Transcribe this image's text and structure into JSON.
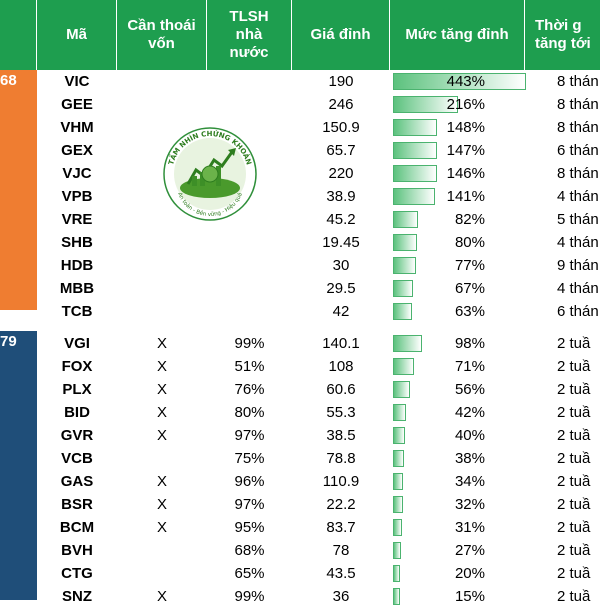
{
  "headers": {
    "ma": "Mã",
    "thoai_von": [
      "Cần thoái",
      "vốn"
    ],
    "tlsh": [
      "TLSH",
      "nhà",
      "nước"
    ],
    "gia_dinh": "Giá đỉnh",
    "muc_tang": "Mức tăng đỉnh",
    "thoi_gian": [
      "Thời g",
      "tăng tới"
    ]
  },
  "groups": {
    "top": {
      "label": "68",
      "color": "#ef7d31"
    },
    "bottom": {
      "label": "79",
      "color": "#1f4e79"
    }
  },
  "logo": {
    "text_top": "TẦM NHÌN CHỨNG KHOÁN",
    "text_bottom": "An toàn - Bền vững - Hiệu quả",
    "icon": "stock-growth-globe-icon"
  },
  "rows_top": [
    {
      "ma": "VIC",
      "thoai_von": "",
      "tlsh": "",
      "gia": "190",
      "pct": "443%",
      "pct_value": 443,
      "time": "8 thán"
    },
    {
      "ma": "GEE",
      "thoai_von": "",
      "tlsh": "",
      "gia": "246",
      "pct": "216%",
      "pct_value": 216,
      "time": "8 thán"
    },
    {
      "ma": "VHM",
      "thoai_von": "",
      "tlsh": "",
      "gia": "150.9",
      "pct": "148%",
      "pct_value": 148,
      "time": "8 thán"
    },
    {
      "ma": "GEX",
      "thoai_von": "",
      "tlsh": "",
      "gia": "65.7",
      "pct": "147%",
      "pct_value": 147,
      "time": "6 thán"
    },
    {
      "ma": "VJC",
      "thoai_von": "",
      "tlsh": "",
      "gia": "220",
      "pct": "146%",
      "pct_value": 146,
      "time": "8 thán"
    },
    {
      "ma": "VPB",
      "thoai_von": "",
      "tlsh": "",
      "gia": "38.9",
      "pct": "141%",
      "pct_value": 141,
      "time": "4 thán"
    },
    {
      "ma": "VRE",
      "thoai_von": "",
      "tlsh": "",
      "gia": "45.2",
      "pct": "82%",
      "pct_value": 82,
      "time": "5 thán"
    },
    {
      "ma": "SHB",
      "thoai_von": "",
      "tlsh": "",
      "gia": "19.45",
      "pct": "80%",
      "pct_value": 80,
      "time": "4 thán"
    },
    {
      "ma": "HDB",
      "thoai_von": "",
      "tlsh": "",
      "gia": "30",
      "pct": "77%",
      "pct_value": 77,
      "time": "9 thán"
    },
    {
      "ma": "MBB",
      "thoai_von": "",
      "tlsh": "",
      "gia": "29.5",
      "pct": "67%",
      "pct_value": 67,
      "time": "4 thán"
    },
    {
      "ma": "TCB",
      "thoai_von": "",
      "tlsh": "",
      "gia": "42",
      "pct": "63%",
      "pct_value": 63,
      "time": "6 thán"
    }
  ],
  "rows_bottom": [
    {
      "ma": "VGI",
      "thoai_von": "X",
      "tlsh": "99%",
      "gia": "140.1",
      "pct": "98%",
      "pct_value": 98,
      "time": "2 tuầ"
    },
    {
      "ma": "FOX",
      "thoai_von": "X",
      "tlsh": "51%",
      "gia": "108",
      "pct": "71%",
      "pct_value": 71,
      "time": "2 tuầ"
    },
    {
      "ma": "PLX",
      "thoai_von": "X",
      "tlsh": "76%",
      "gia": "60.6",
      "pct": "56%",
      "pct_value": 56,
      "time": "2 tuầ"
    },
    {
      "ma": "BID",
      "thoai_von": "X",
      "tlsh": "80%",
      "gia": "55.3",
      "pct": "42%",
      "pct_value": 42,
      "time": "2 tuầ"
    },
    {
      "ma": "GVR",
      "thoai_von": "X",
      "tlsh": "97%",
      "gia": "38.5",
      "pct": "40%",
      "pct_value": 40,
      "time": "2 tuầ"
    },
    {
      "ma": "VCB",
      "thoai_von": "",
      "tlsh": "75%",
      "gia": "78.8",
      "pct": "38%",
      "pct_value": 38,
      "time": "2 tuầ"
    },
    {
      "ma": "GAS",
      "thoai_von": "X",
      "tlsh": "96%",
      "gia": "110.9",
      "pct": "34%",
      "pct_value": 34,
      "time": "2 tuầ"
    },
    {
      "ma": "BSR",
      "thoai_von": "X",
      "tlsh": "97%",
      "gia": "22.2",
      "pct": "32%",
      "pct_value": 32,
      "time": "2 tuầ"
    },
    {
      "ma": "BCM",
      "thoai_von": "X",
      "tlsh": "95%",
      "gia": "83.7",
      "pct": "31%",
      "pct_value": 31,
      "time": "2 tuầ"
    },
    {
      "ma": "BVH",
      "thoai_von": "",
      "tlsh": "68%",
      "gia": "78",
      "pct": "27%",
      "pct_value": 27,
      "time": "2 tuầ"
    },
    {
      "ma": "CTG",
      "thoai_von": "",
      "tlsh": "65%",
      "gia": "43.5",
      "pct": "20%",
      "pct_value": 20,
      "time": "2 tuầ"
    },
    {
      "ma": "SNZ",
      "thoai_von": "X",
      "tlsh": "99%",
      "gia": "36",
      "pct": "15%",
      "pct_value": 15,
      "time": "2 tuầ"
    }
  ]
}
